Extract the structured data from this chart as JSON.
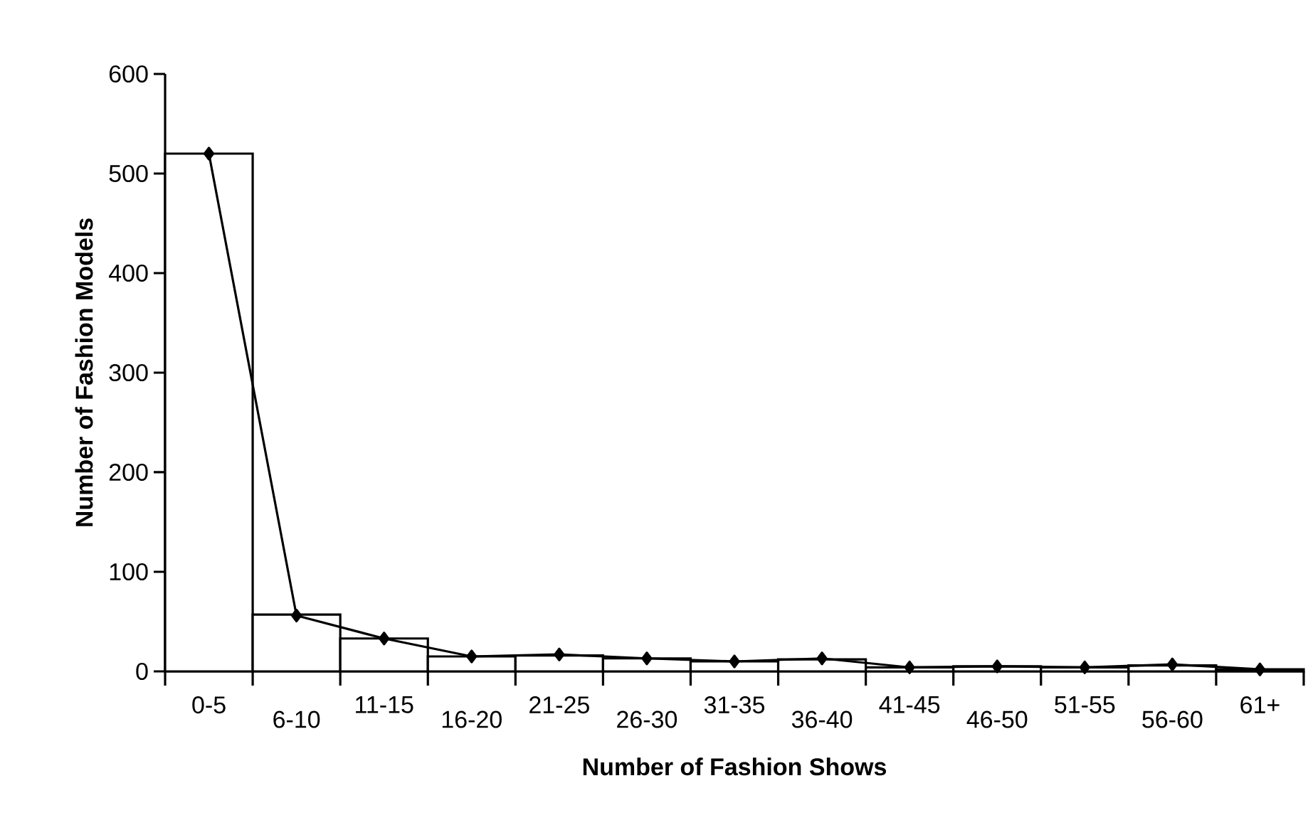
{
  "chart_data": {
    "type": "bar",
    "xlabel": "Number of Fashion Shows",
    "ylabel": "Number of Fashion Models",
    "categories": [
      "0-5",
      "6-10",
      "11-15",
      "16-20",
      "21-25",
      "26-30",
      "31-35",
      "36-40",
      "41-45",
      "46-50",
      "51-55",
      "56-60",
      "61+"
    ],
    "series": [
      {
        "color": "#ffffff",
        "values": [
          520,
          57,
          33,
          15,
          16,
          13,
          10,
          12,
          4,
          5,
          4,
          6,
          2
        ]
      },
      {
        "type": "line",
        "color": "#000000",
        "values": [
          520,
          56,
          33,
          15,
          17,
          13,
          10,
          13,
          4,
          5,
          4,
          7,
          2
        ]
      }
    ],
    "ylim": [
      0,
      600
    ],
    "yticks": [
      0,
      100,
      200,
      300,
      400,
      500,
      600
    ],
    "marker": "diamond",
    "line_style": "solid",
    "grid": false
  }
}
